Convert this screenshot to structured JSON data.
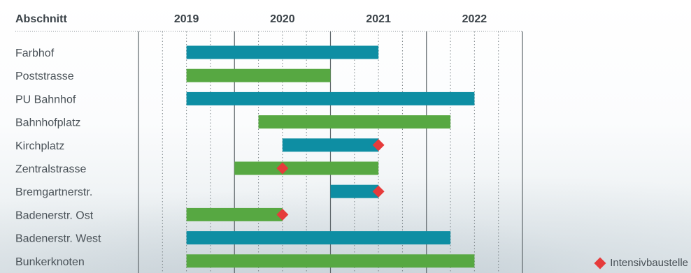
{
  "chart_data": {
    "type": "gantt",
    "label_header": "Abschnitt",
    "years": [
      "2019",
      "2020",
      "2021",
      "2022"
    ],
    "x_range": [
      2018.5,
      2022.5
    ],
    "colors": {
      "teal": "#0e8ea3",
      "green": "#57a842",
      "marker": "#e63b3b"
    },
    "rows": [
      {
        "label": "Farbhof",
        "start": 2019.0,
        "end": 2021.0,
        "color": "teal",
        "markers": []
      },
      {
        "label": "Poststrasse",
        "start": 2019.0,
        "end": 2020.5,
        "color": "green",
        "markers": []
      },
      {
        "label": "PU Bahnhof",
        "start": 2019.0,
        "end": 2022.0,
        "color": "teal",
        "markers": []
      },
      {
        "label": "Bahnhofplatz",
        "start": 2019.75,
        "end": 2021.75,
        "color": "green",
        "markers": []
      },
      {
        "label": "Kirchplatz",
        "start": 2020.0,
        "end": 2021.0,
        "color": "teal",
        "markers": [
          2021.0
        ]
      },
      {
        "label": "Zentralstrasse",
        "start": 2019.5,
        "end": 2021.0,
        "color": "green",
        "markers": [
          2020.0
        ]
      },
      {
        "label": "Bremgartnerstr.",
        "start": 2020.5,
        "end": 2021.0,
        "color": "teal",
        "markers": [
          2021.0
        ]
      },
      {
        "label": "Badenerstr. Ost",
        "start": 2019.0,
        "end": 2020.0,
        "color": "green",
        "markers": [
          2020.0
        ]
      },
      {
        "label": "Badenerstr. West",
        "start": 2019.0,
        "end": 2021.75,
        "color": "teal",
        "markers": []
      },
      {
        "label": "Bunkerknoten",
        "start": 2019.0,
        "end": 2022.0,
        "color": "green",
        "markers": []
      }
    ],
    "legend": {
      "marker_label": "Intensivbaustelle"
    }
  }
}
